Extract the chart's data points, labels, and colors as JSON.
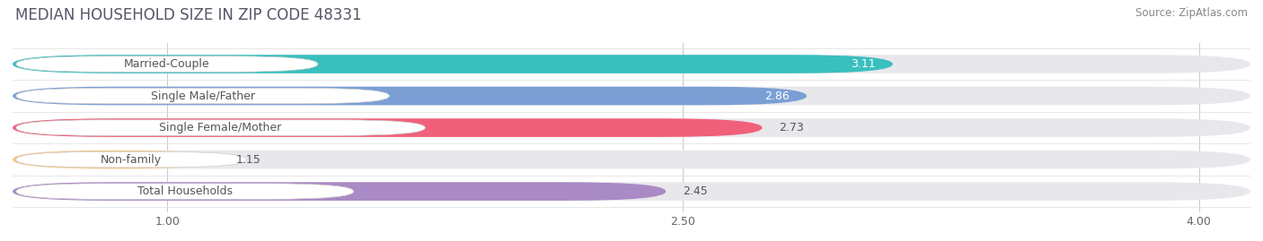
{
  "title": "MEDIAN HOUSEHOLD SIZE IN ZIP CODE 48331",
  "source": "Source: ZipAtlas.com",
  "categories": [
    "Married-Couple",
    "Single Male/Father",
    "Single Female/Mother",
    "Non-family",
    "Total Households"
  ],
  "values": [
    3.11,
    2.86,
    2.73,
    1.15,
    2.45
  ],
  "bar_colors": [
    "#38bfbe",
    "#7b9fd4",
    "#f0607a",
    "#f5c98a",
    "#a98ac5"
  ],
  "value_inside": [
    true,
    true,
    false,
    false,
    false
  ],
  "xlim_data": [
    0.55,
    4.15
  ],
  "xticks": [
    1.0,
    2.5,
    4.0
  ],
  "background_color": "#ffffff",
  "bar_bg_color": "#e8e8ec",
  "title_fontsize": 12,
  "source_fontsize": 8.5,
  "bar_label_fontsize": 9,
  "category_fontsize": 9
}
